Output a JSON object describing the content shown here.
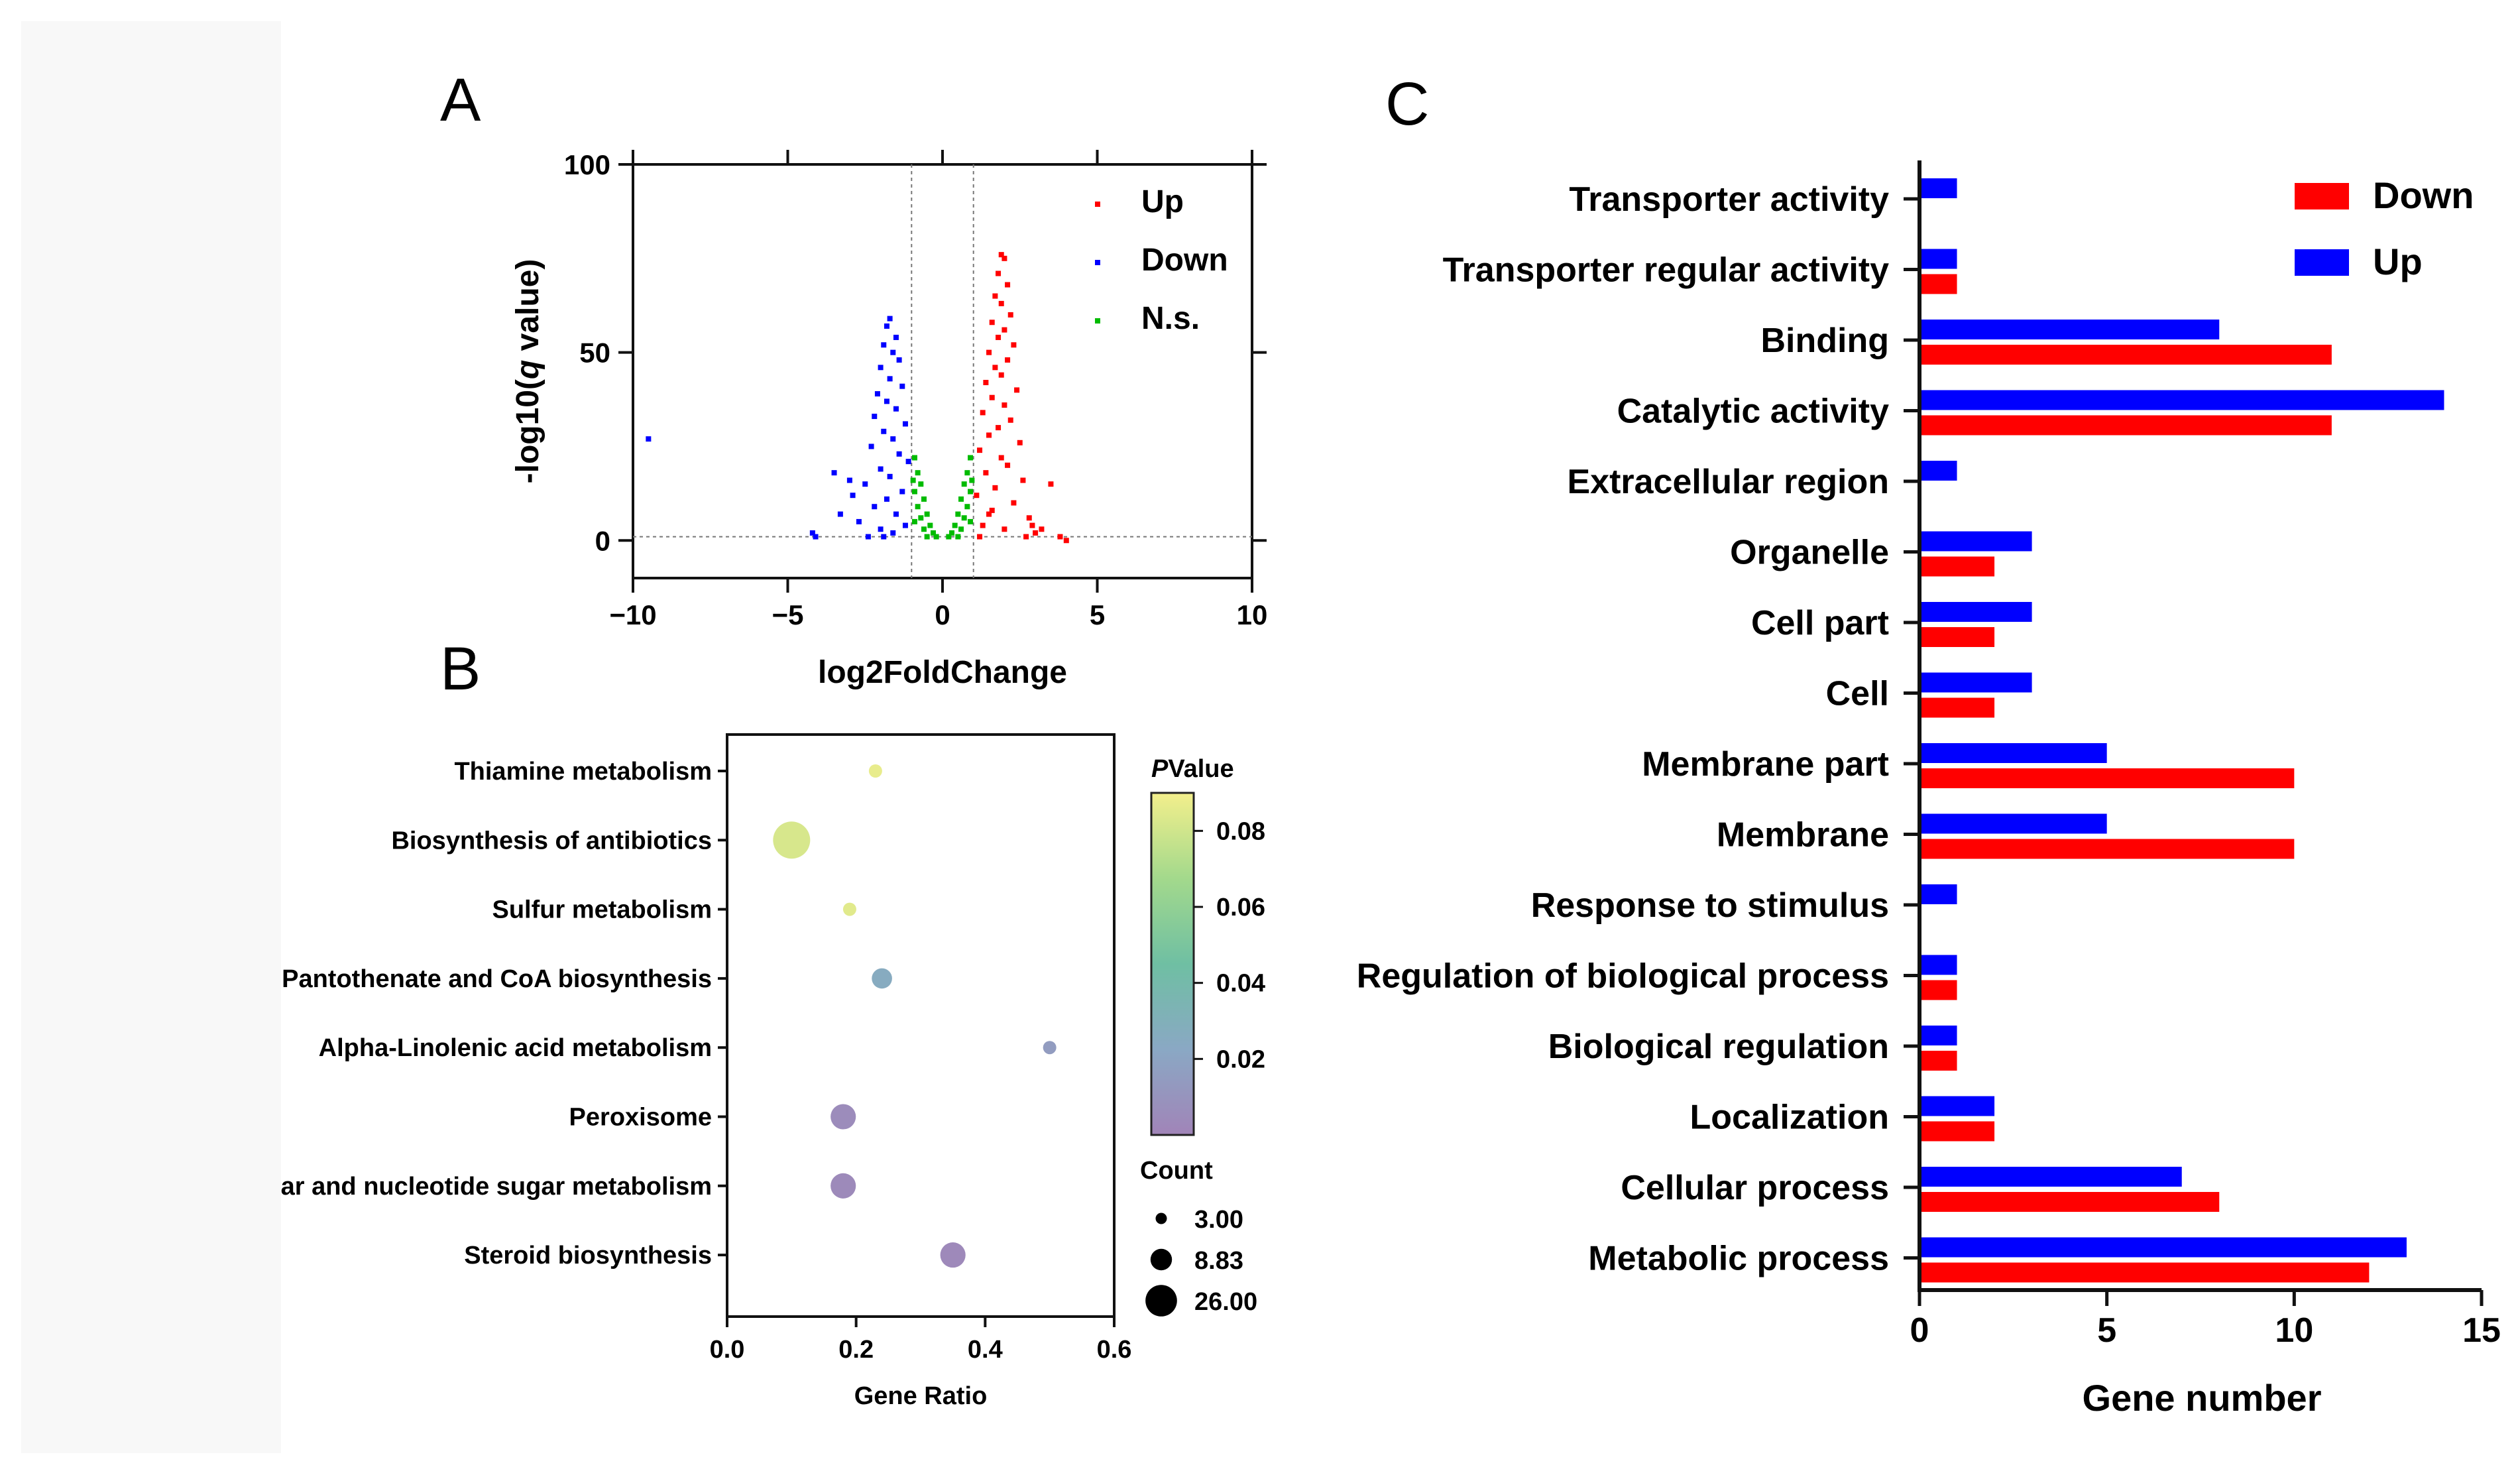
{
  "chart_data": [
    {
      "panel": "A",
      "type": "scatter",
      "title": "",
      "xlabel": "log2FoldChange",
      "ylabel": "-log10(q value)",
      "ylabel_parts": [
        "-log10(",
        "q",
        " value)"
      ],
      "xlim": [
        -10,
        10
      ],
      "ylim": [
        -10,
        100
      ],
      "xticks": [
        -10,
        -5,
        0,
        5,
        10
      ],
      "xtick_labels": [
        "−10",
        "−5",
        "0",
        "5",
        "10"
      ],
      "yticks": [
        0,
        50,
        100
      ],
      "ytick_labels": [
        "0",
        "50",
        "100"
      ],
      "thresholds": {
        "log2fc": [
          -1,
          1
        ],
        "q": 1
      },
      "legend": [
        {
          "name": "Up",
          "color": "#ff0000"
        },
        {
          "name": "Down",
          "color": "#0000ff"
        },
        {
          "name": "N.s.",
          "color": "#00bb00"
        }
      ],
      "series": [
        {
          "name": "Up",
          "color": "#ff0000",
          "points": [
            [
              1.9,
              76
            ],
            [
              2.0,
              75
            ],
            [
              1.8,
              71
            ],
            [
              2.1,
              68
            ],
            [
              1.7,
              65
            ],
            [
              1.9,
              63
            ],
            [
              2.2,
              60
            ],
            [
              1.6,
              58
            ],
            [
              2.0,
              56
            ],
            [
              1.8,
              54
            ],
            [
              2.3,
              52
            ],
            [
              1.5,
              50
            ],
            [
              2.1,
              48
            ],
            [
              1.7,
              46
            ],
            [
              1.9,
              44
            ],
            [
              1.4,
              42
            ],
            [
              2.4,
              40
            ],
            [
              1.6,
              38
            ],
            [
              2.0,
              36
            ],
            [
              1.3,
              34
            ],
            [
              2.2,
              32
            ],
            [
              1.8,
              30
            ],
            [
              1.5,
              28
            ],
            [
              2.5,
              26
            ],
            [
              1.2,
              24
            ],
            [
              1.9,
              22
            ],
            [
              2.1,
              20
            ],
            [
              1.4,
              18
            ],
            [
              2.6,
              16
            ],
            [
              1.7,
              14
            ],
            [
              1.1,
              12
            ],
            [
              2.3,
              10
            ],
            [
              1.6,
              8
            ],
            [
              2.8,
              6
            ],
            [
              1.3,
              4
            ],
            [
              2.0,
              3
            ],
            [
              3.0,
              2
            ],
            [
              1.2,
              1
            ],
            [
              2.7,
              1
            ],
            [
              3.5,
              15
            ],
            [
              4.0,
              0
            ],
            [
              3.8,
              1
            ],
            [
              3.2,
              3
            ],
            [
              2.9,
              4
            ],
            [
              1.5,
              7
            ]
          ]
        },
        {
          "name": "Down",
          "color": "#0000ff",
          "points": [
            [
              -1.7,
              59
            ],
            [
              -1.8,
              57
            ],
            [
              -1.5,
              54
            ],
            [
              -1.9,
              52
            ],
            [
              -1.6,
              50
            ],
            [
              -1.4,
              48
            ],
            [
              -2.0,
              46
            ],
            [
              -1.7,
              43
            ],
            [
              -1.3,
              41
            ],
            [
              -2.1,
              39
            ],
            [
              -1.8,
              37
            ],
            [
              -1.5,
              35
            ],
            [
              -2.2,
              33
            ],
            [
              -1.2,
              31
            ],
            [
              -1.9,
              29
            ],
            [
              -1.6,
              27
            ],
            [
              -2.3,
              25
            ],
            [
              -1.4,
              23
            ],
            [
              -1.1,
              21
            ],
            [
              -2.0,
              19
            ],
            [
              -1.7,
              17
            ],
            [
              -2.5,
              15
            ],
            [
              -1.3,
              13
            ],
            [
              -1.8,
              11
            ],
            [
              -2.2,
              9
            ],
            [
              -1.5,
              7
            ],
            [
              -2.7,
              5
            ],
            [
              -1.2,
              4
            ],
            [
              -2.0,
              3
            ],
            [
              -1.6,
              2
            ],
            [
              -2.4,
              1
            ],
            [
              -3.5,
              18
            ],
            [
              -3.3,
              7
            ],
            [
              -3.0,
              16
            ],
            [
              -4.2,
              2
            ],
            [
              -4.1,
              1
            ],
            [
              -9.5,
              27
            ],
            [
              -2.9,
              12
            ],
            [
              -1.9,
              1
            ]
          ]
        },
        {
          "name": "N.s.",
          "color": "#00bb00",
          "points": [
            [
              -0.9,
              22
            ],
            [
              -0.8,
              18
            ],
            [
              -0.7,
              15
            ],
            [
              -0.9,
              13
            ],
            [
              -0.6,
              11
            ],
            [
              -0.8,
              9
            ],
            [
              -0.5,
              7
            ],
            [
              -0.7,
              6
            ],
            [
              -0.4,
              4
            ],
            [
              -0.6,
              3
            ],
            [
              -0.3,
              2
            ],
            [
              -0.5,
              1
            ],
            [
              -0.2,
              1
            ],
            [
              -0.9,
              5
            ],
            [
              -0.95,
              16
            ],
            [
              0.9,
              22
            ],
            [
              0.8,
              18
            ],
            [
              0.7,
              15
            ],
            [
              0.9,
              13
            ],
            [
              0.6,
              11
            ],
            [
              0.8,
              9
            ],
            [
              0.5,
              7
            ],
            [
              0.7,
              6
            ],
            [
              0.4,
              4
            ],
            [
              0.6,
              3
            ],
            [
              0.3,
              2
            ],
            [
              0.5,
              1
            ],
            [
              0.2,
              1
            ],
            [
              0.9,
              5
            ],
            [
              0.95,
              16
            ]
          ]
        }
      ]
    },
    {
      "panel": "B",
      "type": "scatter",
      "title": "",
      "xlabel": "Gene Ratio",
      "ylabel": "",
      "xlim": [
        0,
        0.6
      ],
      "xticks": [
        0,
        0.2,
        0.4,
        0.6
      ],
      "xtick_labels": [
        "0.0",
        "0.2",
        "0.4",
        "0.6"
      ],
      "categories": [
        "Thiamine metabolism",
        "Biosynthesis of antibiotics",
        "Sulfur metabolism",
        "Pantothenate and CoA biosynthesis",
        "Alpha-Linolenic acid metabolism",
        "Peroxisome",
        "Amino sugar and nucleotide sugar metabolism",
        "Steroid biosynthesis"
      ],
      "gene_ratio": [
        0.23,
        0.1,
        0.19,
        0.24,
        0.5,
        0.18,
        0.18,
        0.35
      ],
      "count": [
        3,
        26,
        3,
        5,
        3,
        8.83,
        8.83,
        8.83
      ],
      "pvalue": [
        0.087,
        0.082,
        0.085,
        0.025,
        0.015,
        0.005,
        0.004,
        0.003
      ],
      "colorbar": {
        "title_italic": "P",
        "title_rest": "Value",
        "range": [
          0,
          0.09
        ],
        "ticks": [
          0.08,
          0.06,
          0.04,
          0.02
        ],
        "tick_labels": [
          "0.08",
          "0.06",
          "0.04",
          "0.02"
        ],
        "colors": [
          "#f3ef8c",
          "#a3d98c",
          "#6fbfa3",
          "#8aa8c4",
          "#a184b8"
        ]
      },
      "size_legend": {
        "title": "Count",
        "values": [
          3,
          8.83,
          26
        ],
        "labels": [
          "3.00",
          "8.83",
          "26.00"
        ]
      }
    },
    {
      "panel": "C",
      "type": "bar",
      "orientation": "horizontal",
      "title": "",
      "xlabel": "Gene number",
      "ylabel": "",
      "xlim": [
        0,
        15
      ],
      "xticks": [
        0,
        5,
        10,
        15
      ],
      "xtick_labels": [
        "0",
        "5",
        "10",
        "15"
      ],
      "categories": [
        "Transporter activity",
        "Transporter regular activity",
        "Binding",
        "Catalytic activity",
        "Extracellular region",
        "Organelle",
        "Cell part",
        "Cell",
        "Membrane part",
        "Membrane",
        "Response to stimulus",
        "Regulation of biological process",
        "Biological regulation",
        "Localization",
        "Cellular process",
        "Metabolic process"
      ],
      "legend": [
        {
          "name": "Down",
          "color": "#ff0000"
        },
        {
          "name": "Up",
          "color": "#0000ff"
        }
      ],
      "series": [
        {
          "name": "Up",
          "color": "#0000ff",
          "values": [
            1,
            1,
            8,
            14,
            1,
            3,
            3,
            3,
            5,
            5,
            1,
            1,
            1,
            2,
            7,
            13
          ]
        },
        {
          "name": "Down",
          "color": "#ff0000",
          "values": [
            0,
            1,
            11,
            11,
            0,
            2,
            2,
            2,
            10,
            10,
            0,
            1,
            1,
            2,
            8,
            12
          ]
        }
      ]
    }
  ],
  "panel_labels": {
    "a": "A",
    "b": "B",
    "c": "C"
  }
}
